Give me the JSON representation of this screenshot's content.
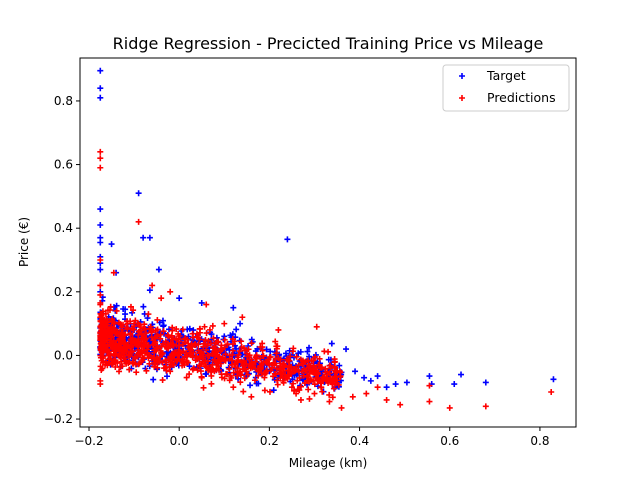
{
  "chart_data": {
    "type": "scatter",
    "title": "Ridge Regression - Precicted Training Price vs Mileage",
    "xlabel": "Mileage (km)",
    "ylabel": "Price (€)",
    "xlim": [
      -0.22,
      0.88
    ],
    "ylim": [
      -0.225,
      0.935
    ],
    "xticks": [
      -0.2,
      0.0,
      0.2,
      0.4,
      0.6,
      0.8
    ],
    "yticks": [
      -0.2,
      0.0,
      0.2,
      0.4,
      0.6,
      0.8
    ],
    "xtick_labels": [
      "−0.2",
      "0.0",
      "0.2",
      "0.4",
      "0.6",
      "0.8"
    ],
    "ytick_labels": [
      "−0.2",
      "0.0",
      "0.2",
      "0.4",
      "0.6",
      "0.8"
    ],
    "grid": false,
    "legend_position": "top-right",
    "marker": "plus",
    "series": [
      {
        "name": "Target",
        "color": "#0000ff",
        "points": [
          [
            -0.175,
            0.895
          ],
          [
            -0.175,
            0.84
          ],
          [
            -0.175,
            0.81
          ],
          [
            -0.175,
            0.46
          ],
          [
            -0.175,
            0.41
          ],
          [
            -0.175,
            0.37
          ],
          [
            -0.175,
            0.355
          ],
          [
            -0.175,
            0.31
          ],
          [
            -0.175,
            0.29
          ],
          [
            -0.175,
            0.27
          ],
          [
            -0.175,
            0.2
          ],
          [
            -0.15,
            0.35
          ],
          [
            -0.14,
            0.26
          ],
          [
            -0.09,
            0.51
          ],
          [
            -0.08,
            0.37
          ],
          [
            -0.065,
            0.37
          ],
          [
            -0.045,
            0.27
          ],
          [
            -0.065,
            0.205
          ],
          [
            0.0,
            0.18
          ],
          [
            0.05,
            0.165
          ],
          [
            0.12,
            0.15
          ],
          [
            0.135,
            0.1
          ],
          [
            0.24,
            0.365
          ],
          [
            0.37,
            0.02
          ],
          [
            0.39,
            -0.05
          ],
          [
            0.41,
            -0.07
          ],
          [
            0.425,
            -0.08
          ],
          [
            0.44,
            -0.065
          ],
          [
            0.46,
            -0.1
          ],
          [
            0.48,
            -0.09
          ],
          [
            0.505,
            -0.085
          ],
          [
            0.555,
            -0.065
          ],
          [
            0.56,
            -0.09
          ],
          [
            0.61,
            -0.09
          ],
          [
            0.625,
            -0.06
          ],
          [
            0.68,
            -0.085
          ],
          [
            0.83,
            -0.075
          ],
          [
            -0.12,
            0.13
          ],
          [
            -0.1,
            0.08
          ],
          [
            -0.05,
            0.05
          ],
          [
            0.02,
            0.02
          ],
          [
            0.08,
            -0.01
          ],
          [
            0.15,
            -0.03
          ],
          [
            0.2,
            -0.05
          ],
          [
            0.28,
            -0.06
          ],
          [
            0.33,
            -0.07
          ],
          [
            -0.16,
            0.1
          ],
          [
            -0.13,
            0.05
          ],
          [
            0.1,
            0.06
          ],
          [
            0.18,
            0.02
          ]
        ]
      },
      {
        "name": "Predictions",
        "color": "#ff0000",
        "points": [
          [
            -0.175,
            0.64
          ],
          [
            -0.175,
            0.62
          ],
          [
            -0.175,
            0.59
          ],
          [
            -0.175,
            0.3
          ],
          [
            -0.175,
            0.22
          ],
          [
            -0.175,
            0.19
          ],
          [
            -0.175,
            0.16
          ],
          [
            -0.175,
            0.12
          ],
          [
            -0.175,
            -0.08
          ],
          [
            -0.175,
            -0.09
          ],
          [
            -0.145,
            0.26
          ],
          [
            -0.09,
            0.42
          ],
          [
            -0.06,
            0.22
          ],
          [
            -0.04,
            0.18
          ],
          [
            -0.02,
            0.2
          ],
          [
            0.06,
            0.16
          ],
          [
            0.1,
            0.1
          ],
          [
            0.14,
            0.12
          ],
          [
            0.22,
            0.08
          ],
          [
            0.305,
            0.09
          ],
          [
            0.35,
            -0.05
          ],
          [
            0.36,
            -0.165
          ],
          [
            0.385,
            -0.13
          ],
          [
            0.415,
            -0.12
          ],
          [
            0.44,
            -0.1
          ],
          [
            0.46,
            -0.14
          ],
          [
            0.49,
            -0.155
          ],
          [
            0.555,
            -0.095
          ],
          [
            0.555,
            -0.145
          ],
          [
            0.6,
            -0.165
          ],
          [
            0.68,
            -0.16
          ],
          [
            0.825,
            -0.115
          ],
          [
            0.25,
            -0.1
          ],
          [
            0.27,
            -0.14
          ],
          [
            0.3,
            -0.12
          ],
          [
            0.19,
            -0.11
          ],
          [
            0.23,
            -0.08
          ],
          [
            0.16,
            -0.13
          ],
          [
            0.12,
            -0.1
          ],
          [
            0.05,
            -0.07
          ],
          [
            -0.1,
            0.1
          ],
          [
            -0.05,
            0.06
          ],
          [
            0.0,
            0.03
          ],
          [
            0.08,
            0.0
          ],
          [
            -0.12,
            -0.02
          ],
          [
            -0.02,
            -0.05
          ],
          [
            0.13,
            -0.05
          ],
          [
            -0.16,
            0.05
          ],
          [
            0.2,
            -0.03
          ],
          [
            0.31,
            -0.08
          ]
        ]
      }
    ],
    "dense_regions": [
      {
        "series": "Target",
        "count": 700,
        "x_start": -0.175,
        "x_end": 0.36,
        "y_start": 0.06,
        "y_end": -0.06,
        "spread": 0.04,
        "seed": 7
      },
      {
        "series": "Predictions",
        "count": 900,
        "x_start": -0.175,
        "x_end": 0.36,
        "y_start": 0.05,
        "y_end": -0.07,
        "spread": 0.045,
        "seed": 13
      }
    ]
  }
}
